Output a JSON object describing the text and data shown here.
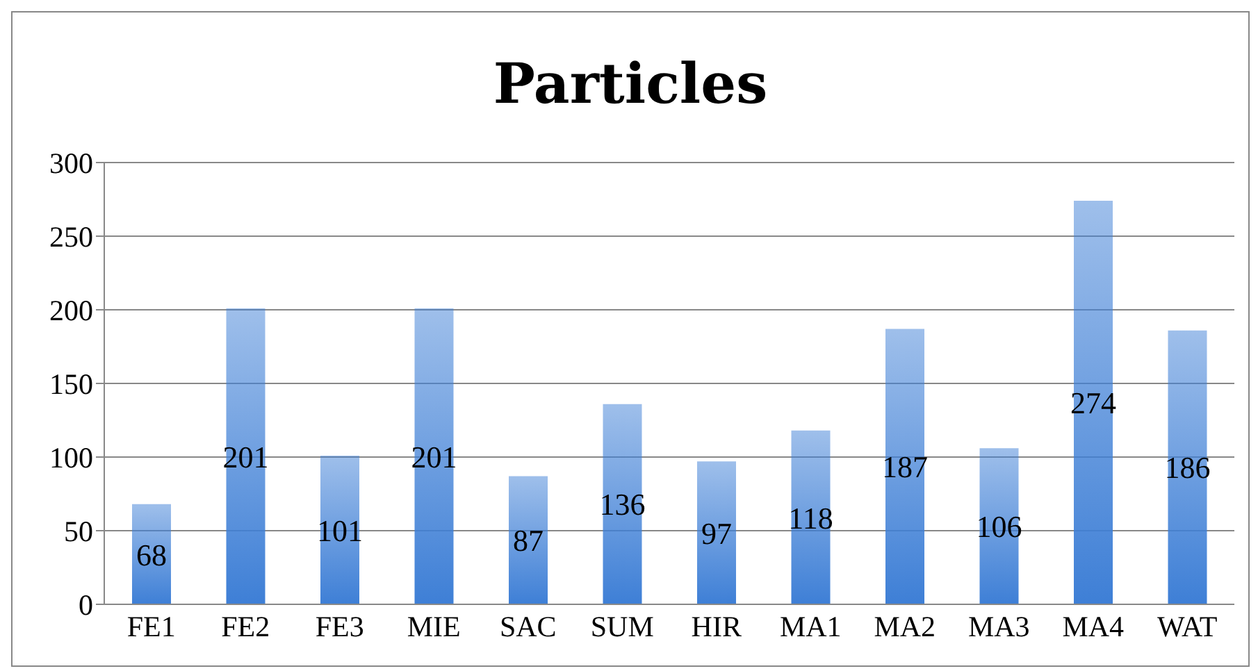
{
  "chart_data": {
    "type": "bar",
    "title": "Particles",
    "categories": [
      "FE1",
      "FE2",
      "FE3",
      "MIE",
      "SAC",
      "SUM",
      "HIR",
      "MA1",
      "MA2",
      "MA3",
      "MA4",
      "WAT"
    ],
    "values": [
      68,
      201,
      101,
      201,
      87,
      136,
      97,
      118,
      187,
      106,
      274,
      186
    ],
    "color": "#3e7fd6",
    "ylim": [
      0,
      300
    ],
    "yticks": [
      0,
      50,
      100,
      150,
      200,
      250,
      300
    ],
    "grid": "y",
    "data_labels": true,
    "legend": false
  }
}
